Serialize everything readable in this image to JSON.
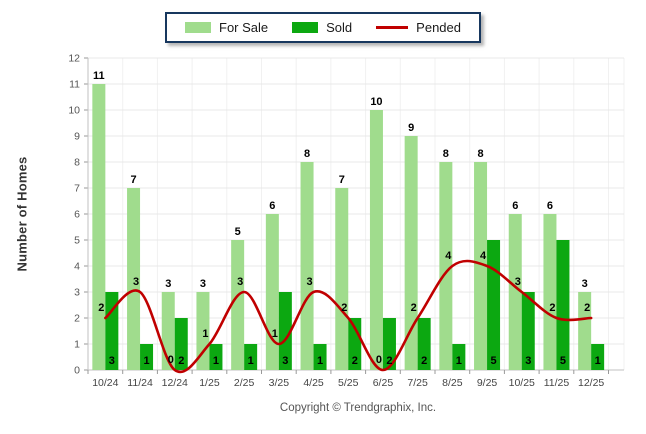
{
  "page": {
    "copyright": "Copyright © Trendgraphix, Inc."
  },
  "legend": {
    "items": [
      {
        "label": "For Sale",
        "swatch": "bar",
        "color": "#a0dc8d"
      },
      {
        "label": "Sold",
        "swatch": "bar",
        "color": "#0ca811"
      },
      {
        "label": "Pended",
        "swatch": "line",
        "color": "#c00000"
      }
    ]
  },
  "chart_data": {
    "type": "bar",
    "title": "",
    "xlabel": "",
    "ylabel": "Number of Homes",
    "ylim": [
      0,
      12
    ],
    "ytick_interval": 1,
    "grid": true,
    "legend_position": "top-center",
    "categories": [
      "10/24",
      "11/24",
      "12/24",
      "1/25",
      "2/25",
      "3/25",
      "4/25",
      "5/25",
      "6/25",
      "7/25",
      "8/25",
      "9/25",
      "10/25",
      "11/25",
      "12/25"
    ],
    "series": [
      {
        "name": "For Sale",
        "type": "bar",
        "color": "#a0dc8d",
        "values": [
          11,
          7,
          3,
          3,
          5,
          6,
          8,
          7,
          10,
          9,
          8,
          8,
          6,
          6,
          3
        ]
      },
      {
        "name": "Sold",
        "type": "bar",
        "color": "#0ca811",
        "values": [
          3,
          1,
          2,
          1,
          1,
          3,
          1,
          2,
          2,
          2,
          1,
          5,
          3,
          5,
          1
        ]
      },
      {
        "name": "Pended",
        "type": "line",
        "color": "#c00000",
        "values": [
          2,
          3,
          0,
          1,
          3,
          1,
          3,
          2,
          0,
          2,
          4,
          4,
          3,
          2,
          2
        ]
      }
    ],
    "style": {
      "grid_h_color": "#e8e8e8",
      "grid_v_color": "#f1f1f1",
      "axis_color": "#c2c2c2",
      "tick_color": "#999999",
      "label_color": "#000000"
    }
  }
}
